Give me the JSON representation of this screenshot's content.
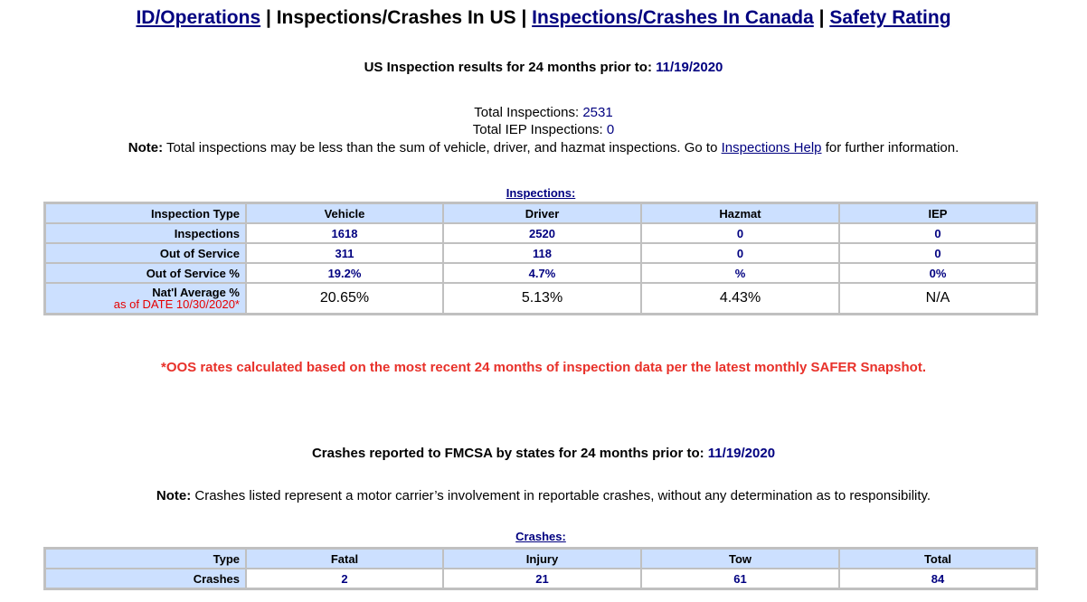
{
  "nav": {
    "id_operations": "ID/Operations",
    "sep1": " | ",
    "current": "Inspections/Crashes In US",
    "sep2": " | ",
    "canada": "Inspections/Crashes In Canada",
    "sep3": " | ",
    "safety": "Safety Rating"
  },
  "inspection_header": {
    "label": "US Inspection results for 24 months prior to: ",
    "date": "11/19/2020"
  },
  "totals": {
    "inspections_label": "Total Inspections: ",
    "inspections_value": "2531",
    "iep_label": "Total IEP Inspections: ",
    "iep_value": "0"
  },
  "inspection_note": {
    "bold": "Note:",
    "text": " Total inspections may be less than the sum of vehicle, driver, and hazmat inspections. Go to ",
    "link": "Inspections Help",
    "after": " for further information."
  },
  "inspections_table": {
    "caption": "Inspections:",
    "headers": [
      "Inspection Type",
      "Vehicle",
      "Driver",
      "Hazmat",
      "IEP"
    ],
    "rows": [
      {
        "label": "Inspections",
        "values": [
          "1618",
          "2520",
          "0",
          "0"
        ]
      },
      {
        "label": "Out of Service",
        "values": [
          "311",
          "118",
          "0",
          "0"
        ]
      },
      {
        "label": "Out of Service %",
        "values": [
          "19.2%",
          "4.7%",
          "%",
          "0%"
        ]
      }
    ],
    "avg_row": {
      "label": "Nat'l Average %",
      "sublabel": "as of DATE 10/30/2020*",
      "values": [
        "20.65%",
        "5.13%",
        "4.43%",
        "N/A"
      ]
    }
  },
  "oos_note": "*OOS rates calculated based on the most recent 24 months of inspection data per the latest monthly SAFER Snapshot.",
  "crash_header": {
    "label": "Crashes reported to FMCSA by states for 24 months prior to: ",
    "date": "11/19/2020"
  },
  "crash_note": {
    "bold": "Note:",
    "text": " Crashes listed represent a motor carrier’s involvement in reportable crashes, without any determination as to responsibility."
  },
  "crashes_table": {
    "caption": "Crashes:",
    "headers": [
      "Type",
      "Fatal",
      "Injury",
      "Tow",
      "Total"
    ],
    "rows": [
      {
        "label": "Crashes",
        "values": [
          "2",
          "21",
          "61",
          "84"
        ]
      }
    ]
  }
}
